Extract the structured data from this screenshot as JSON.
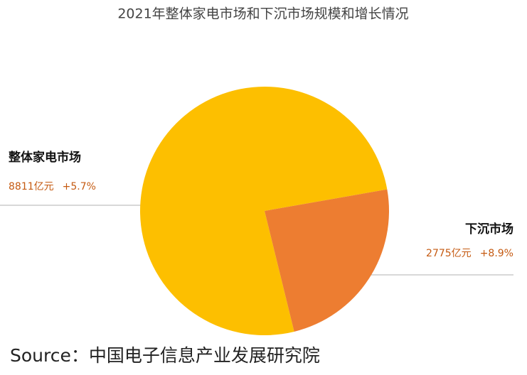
{
  "chart_data": {
    "type": "pie",
    "title": "2021年整体家电市场和下沉市场规模和增长情况",
    "categories": [
      "整体家电市场",
      "下沉市场"
    ],
    "values": [
      8811,
      2775
    ],
    "value_labels": [
      "8811亿元",
      "2775亿元"
    ],
    "growth_labels": [
      "+5.7%",
      "+8.9%"
    ],
    "colors": [
      "#fdbf00",
      "#ed7d31"
    ],
    "source": "Source：中国电子信息产业发展研究院"
  }
}
